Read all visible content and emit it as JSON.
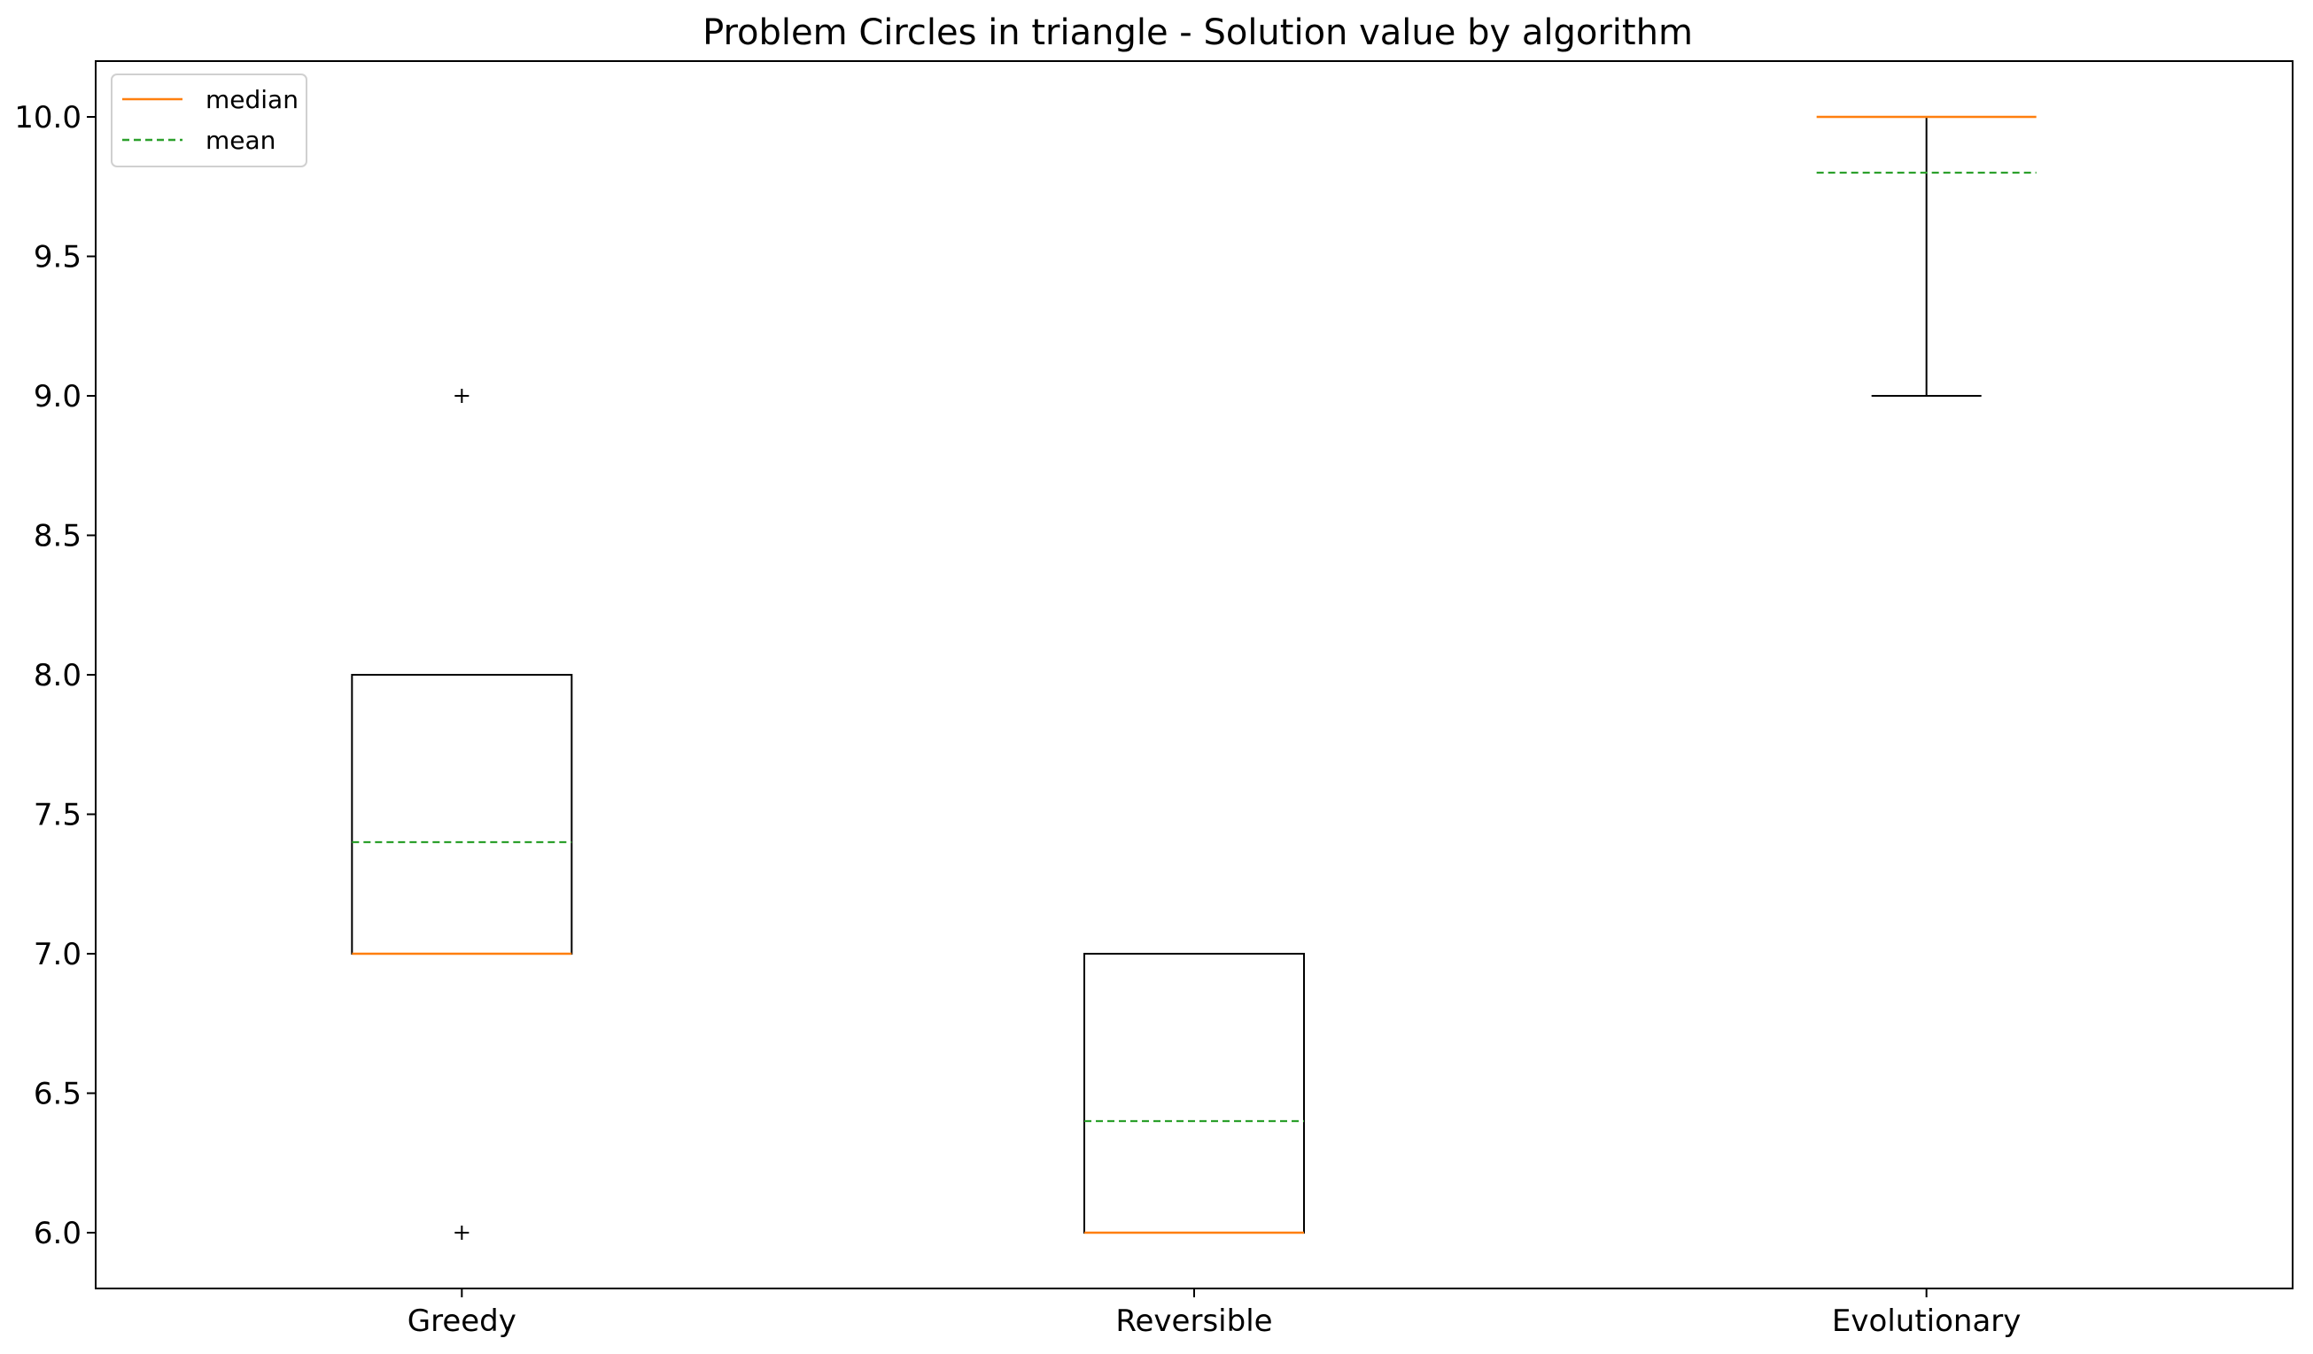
{
  "chart_data": {
    "type": "box",
    "title": "Problem Circles in triangle - Solution value by algorithm",
    "xlabel": "",
    "ylabel": "",
    "ylim": [
      5.8,
      10.2
    ],
    "yticks": [
      "6.0",
      "6.5",
      "7.0",
      "7.5",
      "8.0",
      "8.5",
      "9.0",
      "9.5",
      "10.0"
    ],
    "grid": false,
    "legend": {
      "placement": "top-left",
      "entries": [
        {
          "label": "median",
          "color": "#ff7f0e",
          "style": "solid"
        },
        {
          "label": "mean",
          "color": "#2ca02c",
          "style": "dashed"
        }
      ]
    },
    "categories": [
      "Greedy",
      "Reversible",
      "Evolutionary"
    ],
    "boxes": [
      {
        "name": "Greedy",
        "q1": 7.0,
        "median": 7.0,
        "q3": 8.0,
        "whisker_low": 7.0,
        "whisker_high": 8.0,
        "mean": 7.4,
        "fliers": [
          9.0,
          6.0
        ]
      },
      {
        "name": "Reversible",
        "q1": 6.0,
        "median": 6.0,
        "q3": 7.0,
        "whisker_low": 6.0,
        "whisker_high": 7.0,
        "mean": 6.4,
        "fliers": []
      },
      {
        "name": "Evolutionary",
        "q1": 10.0,
        "median": 10.0,
        "q3": 10.0,
        "whisker_low": 9.0,
        "whisker_high": 10.0,
        "mean": 9.8,
        "fliers": []
      }
    ],
    "colors": {
      "box": "#000000",
      "median": "#ff7f0e",
      "mean": "#2ca02c"
    }
  }
}
